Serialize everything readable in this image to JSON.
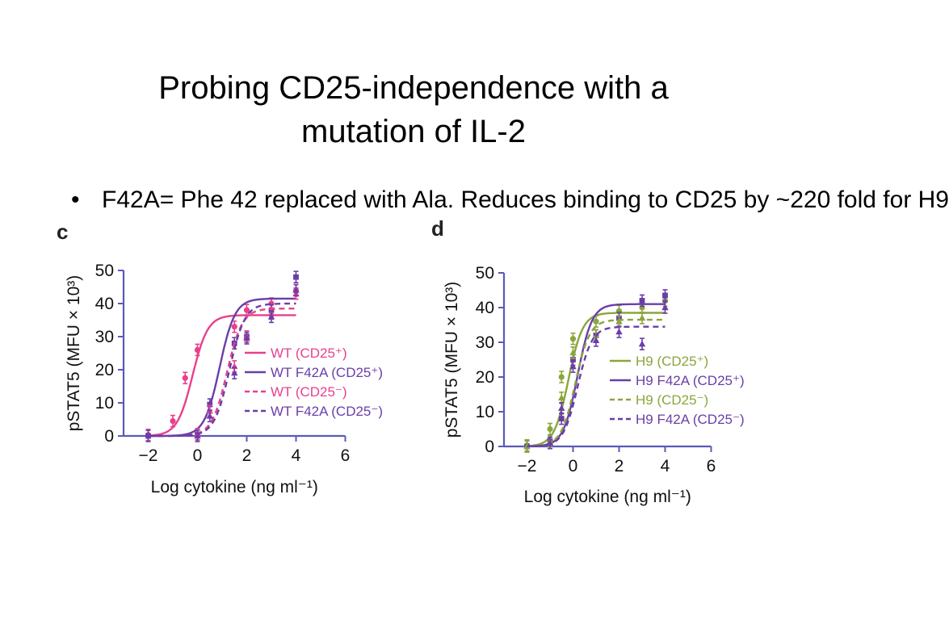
{
  "slide": {
    "title_line1": "Probing CD25-independence with a",
    "title_line2": "mutation of IL-2",
    "bullet_marker": "•",
    "bullet_text": "F42A= Phe 42 replaced with Ala. Reduces binding to CD25 by ~220 fold for H9"
  },
  "chart_data": [
    {
      "panel": "c",
      "type": "line",
      "xlabel": "Log cytokine (ng ml⁻¹)",
      "ylabel": "pSTAT5 (MFU × 10³)",
      "xlim": [
        -3,
        6
      ],
      "ylim": [
        0,
        50
      ],
      "xticks": [
        -2,
        0,
        2,
        4,
        6
      ],
      "yticks": [
        0,
        10,
        20,
        30,
        40,
        50
      ],
      "legend_position": "center-right",
      "series": [
        {
          "name": "WT (CD25⁺)",
          "color": "#e8418c",
          "dash": false,
          "marker": "circle",
          "fit": {
            "bottom": 0,
            "top": 36.5,
            "ec50": -0.2,
            "hill": 1.4
          },
          "points": [
            [
              -2,
              0.3
            ],
            [
              -1,
              4.5
            ],
            [
              -0.5,
              17.5
            ],
            [
              0,
              26
            ],
            [
              1.5,
              33
            ],
            [
              2,
              38
            ],
            [
              3,
              40
            ],
            [
              4,
              44
            ]
          ]
        },
        {
          "name": "WT F42A (CD25⁺)",
          "color": "#6a3ea8",
          "dash": false,
          "marker": "square",
          "fit": {
            "bottom": 0,
            "top": 41.5,
            "ec50": 0.9,
            "hill": 1.4
          },
          "points": [
            [
              -2,
              0
            ],
            [
              0,
              0.5
            ],
            [
              0.5,
              9.5
            ],
            [
              1.5,
              28
            ],
            [
              2,
              30
            ],
            [
              3,
              38
            ],
            [
              4,
              48
            ]
          ]
        },
        {
          "name": "WT (CD25⁻)",
          "color": "#e8418c",
          "dash": true,
          "marker": "triangle",
          "fit": {
            "bottom": 0,
            "top": 38.5,
            "ec50": 1.2,
            "hill": 1.4
          },
          "points": [
            [
              0,
              0.5
            ],
            [
              0.5,
              7.5
            ],
            [
              1.5,
              21
            ],
            [
              2,
              30
            ],
            [
              3,
              37
            ],
            [
              4,
              43
            ]
          ]
        },
        {
          "name": "WT F42A (CD25⁻)",
          "color": "#6a3ea8",
          "dash": true,
          "marker": "triangle",
          "fit": {
            "bottom": 0,
            "top": 40,
            "ec50": 1.3,
            "hill": 1.4
          },
          "points": [
            [
              0,
              0
            ],
            [
              0.5,
              6
            ],
            [
              1.5,
              19
            ],
            [
              2,
              29.5
            ],
            [
              3,
              36
            ],
            [
              4,
              44
            ]
          ]
        }
      ]
    },
    {
      "panel": "d",
      "type": "line",
      "xlabel": "Log cytokine (ng ml⁻¹)",
      "ylabel": "pSTAT5 (MFU × 10³)",
      "xlim": [
        -3,
        6
      ],
      "ylim": [
        0,
        50
      ],
      "xticks": [
        -2,
        0,
        2,
        4,
        6
      ],
      "yticks": [
        0,
        10,
        20,
        30,
        40,
        50
      ],
      "legend_position": "center-right",
      "series": [
        {
          "name": "H9 (CD25⁺)",
          "color": "#8aa63c",
          "dash": false,
          "marker": "circle",
          "fit": {
            "bottom": 0,
            "top": 38.5,
            "ec50": -0.2,
            "hill": 1.4
          },
          "points": [
            [
              -2,
              0.3
            ],
            [
              -1,
              5
            ],
            [
              -0.5,
              20
            ],
            [
              0,
              31
            ],
            [
              1,
              36
            ],
            [
              2,
              39
            ],
            [
              3,
              40
            ],
            [
              4,
              42
            ]
          ]
        },
        {
          "name": "H9 F42A (CD25⁺)",
          "color": "#6a3ea8",
          "dash": false,
          "marker": "square",
          "fit": {
            "bottom": 0,
            "top": 41,
            "ec50": 0.2,
            "hill": 1.4
          },
          "points": [
            [
              -2,
              0
            ],
            [
              -1,
              1.5
            ],
            [
              -0.5,
              8
            ],
            [
              0,
              25
            ],
            [
              1,
              32
            ],
            [
              2,
              37
            ],
            [
              3,
              42
            ],
            [
              4,
              43.5
            ]
          ]
        },
        {
          "name": "H9 (CD25⁻)",
          "color": "#8aa63c",
          "dash": true,
          "marker": "triangle",
          "fit": {
            "bottom": 0,
            "top": 36.5,
            "ec50": 0.1,
            "hill": 1.4
          },
          "points": [
            [
              -2,
              0
            ],
            [
              -1,
              1.5
            ],
            [
              -0.5,
              14
            ],
            [
              0,
              27
            ],
            [
              1,
              32
            ],
            [
              2,
              36
            ],
            [
              3,
              37
            ]
          ]
        },
        {
          "name": "H9 F42A (CD25⁻)",
          "color": "#6a3ea8",
          "dash": true,
          "marker": "triangle",
          "fit": {
            "bottom": 0,
            "top": 34.5,
            "ec50": 0.2,
            "hill": 1.4
          },
          "points": [
            [
              -1,
              1
            ],
            [
              -0.5,
              11
            ],
            [
              0,
              23
            ],
            [
              1,
              30.5
            ],
            [
              2,
              33
            ],
            [
              3,
              29.5
            ],
            [
              4,
              40
            ]
          ]
        }
      ]
    }
  ]
}
